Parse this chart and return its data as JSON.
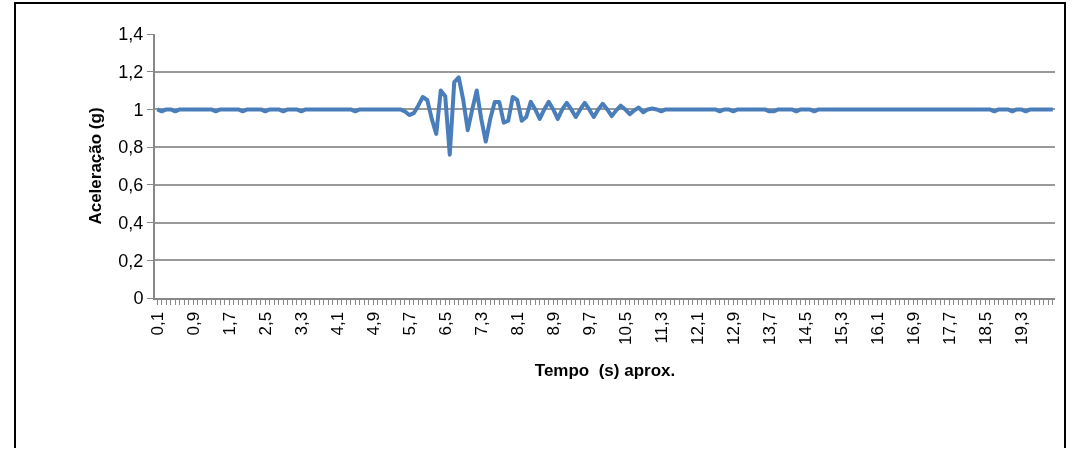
{
  "chart_data": {
    "type": "line",
    "xlabel": "Tempo  (s) aprox.",
    "ylabel": "Aceleração (g)",
    "categories": [
      "0,1",
      null,
      null,
      null,
      null,
      null,
      null,
      null,
      "0,9",
      null,
      null,
      null,
      null,
      null,
      null,
      null,
      "1,7",
      null,
      null,
      null,
      null,
      null,
      null,
      null,
      "2,5",
      null,
      null,
      null,
      null,
      null,
      null,
      null,
      "3,3",
      null,
      null,
      null,
      null,
      null,
      null,
      null,
      "4,1",
      null,
      null,
      null,
      null,
      null,
      null,
      null,
      "4,9",
      null,
      null,
      null,
      null,
      null,
      null,
      null,
      "5,7",
      null,
      null,
      null,
      null,
      null,
      null,
      null,
      "6,5",
      null,
      null,
      null,
      null,
      null,
      null,
      null,
      "7,3",
      null,
      null,
      null,
      null,
      null,
      null,
      null,
      "8,1",
      null,
      null,
      null,
      null,
      null,
      null,
      null,
      "8,9",
      null,
      null,
      null,
      null,
      null,
      null,
      null,
      "9,7",
      null,
      null,
      null,
      null,
      null,
      null,
      null,
      "10,5",
      null,
      null,
      null,
      null,
      null,
      null,
      null,
      "11,3",
      null,
      null,
      null,
      null,
      null,
      null,
      null,
      "12,1",
      null,
      null,
      null,
      null,
      null,
      null,
      null,
      "12,9",
      null,
      null,
      null,
      null,
      null,
      null,
      null,
      "13,7",
      null,
      null,
      null,
      null,
      null,
      null,
      null,
      "14,5",
      null,
      null,
      null,
      null,
      null,
      null,
      null,
      "15,3",
      null,
      null,
      null,
      null,
      null,
      null,
      null,
      "16,1",
      null,
      null,
      null,
      null,
      null,
      null,
      null,
      "16,9",
      null,
      null,
      null,
      null,
      null,
      null,
      null,
      "17,7",
      null,
      null,
      null,
      null,
      null,
      null,
      null,
      "18,5",
      null,
      null,
      null,
      null,
      null,
      null,
      null,
      "19,3",
      null,
      null,
      null,
      null,
      null,
      null,
      null
    ],
    "series": [
      {
        "color": "#4a7ebb",
        "values": [
          1,
          0.99,
          1,
          1,
          0.99,
          1,
          1,
          1,
          1,
          1,
          1,
          1,
          1,
          0.99,
          1,
          1,
          1,
          1,
          1,
          0.99,
          1,
          1,
          1,
          1,
          0.99,
          1,
          1,
          1,
          0.99,
          1,
          1,
          1,
          0.99,
          1,
          1,
          1,
          1,
          1,
          1,
          1,
          1,
          1,
          1,
          1,
          0.99,
          1,
          1,
          1,
          1,
          1,
          1,
          1,
          1,
          1,
          1,
          0.99,
          0.97,
          0.98,
          1.02,
          1.066,
          1.05,
          0.95,
          0.87,
          1.1,
          1.07,
          0.76,
          1.145,
          1.17,
          1.05,
          0.89,
          1.0,
          1.1,
          0.95,
          0.83,
          0.95,
          1.04,
          1.04,
          0.93,
          0.94,
          1.066,
          1.05,
          0.94,
          0.96,
          1.04,
          1.0,
          0.95,
          1.0,
          1.04,
          1.0,
          0.95,
          1.0,
          1.035,
          1.0,
          0.96,
          1.0,
          1.035,
          1.0,
          0.96,
          1.0,
          1.03,
          1.0,
          0.965,
          0.995,
          1.02,
          1.0,
          0.975,
          0.995,
          1.01,
          0.985,
          1.0,
          1.005,
          1.0,
          0.99,
          1,
          1,
          1,
          1,
          1,
          1,
          1,
          1,
          1,
          1,
          1,
          1,
          0.99,
          1,
          1,
          0.99,
          1,
          1,
          1,
          1,
          1,
          1,
          1,
          0.99,
          0.99,
          1,
          1,
          1,
          1,
          0.99,
          1,
          1,
          1,
          0.99,
          1,
          1,
          1,
          1,
          1,
          1,
          1,
          1,
          1,
          1,
          1,
          1,
          1,
          1,
          1,
          1,
          1,
          1,
          1,
          1,
          1,
          1,
          1,
          1,
          1,
          1,
          1,
          1,
          1,
          1,
          1,
          1,
          1,
          1,
          1,
          1,
          1,
          1,
          1,
          0.99,
          1,
          1,
          1,
          0.99,
          1,
          1,
          0.99,
          1,
          1,
          1,
          1,
          1,
          1
        ]
      }
    ],
    "ylim": [
      0,
      1.4
    ],
    "yticks": [
      0,
      {
        "value": 0.2,
        "label": "0,2"
      },
      {
        "value": 0.4,
        "label": "0,4"
      },
      {
        "value": 0.6,
        "label": "0,6"
      },
      {
        "value": 0.8,
        "label": "0,8"
      },
      1,
      {
        "value": 1.2,
        "label": "1,2"
      },
      {
        "value": 1.4,
        "label": "1,4"
      }
    ],
    "grid": "y",
    "marker": "none",
    "line_style": "solid"
  }
}
